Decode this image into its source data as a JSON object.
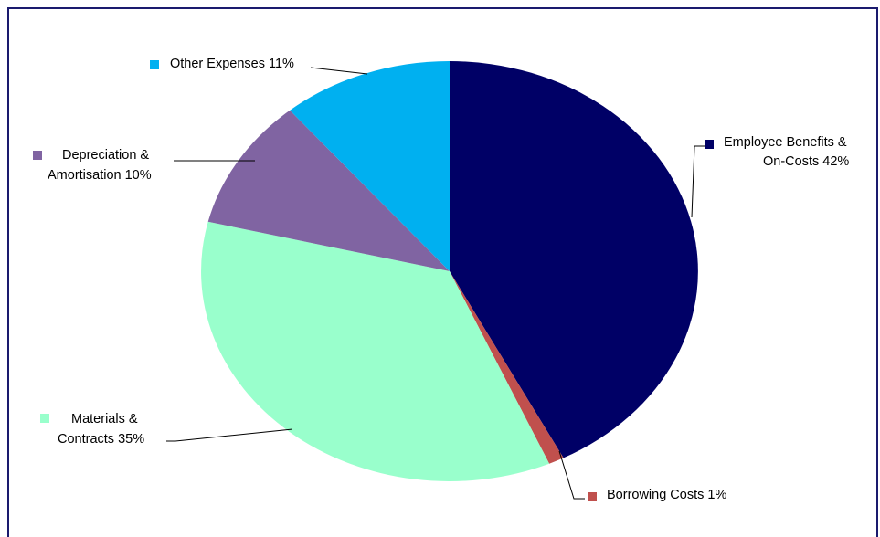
{
  "chart_data": {
    "type": "pie",
    "title": "",
    "slices": [
      {
        "label_lines": [
          "Employee Benefits &",
          "On-Costs 42%"
        ],
        "category": "Employee Benefits & On-Costs",
        "value": 42,
        "color": "#000066"
      },
      {
        "label_lines": [
          "Borrowing Costs 1%"
        ],
        "category": "Borrowing Costs",
        "value": 1,
        "color": "#c0504d"
      },
      {
        "label_lines": [
          "Materials &",
          "Contracts 35%"
        ],
        "category": "Materials & Contracts",
        "value": 35,
        "color": "#99ffcc"
      },
      {
        "label_lines": [
          "Depreciation &",
          "Amortisation 10%"
        ],
        "category": "Depreciation & Amortisation",
        "value": 10,
        "color": "#8064a2"
      },
      {
        "label_lines": [
          "Other Expenses 11%"
        ],
        "category": "Other Expenses",
        "value": 11,
        "color": "#00b0f0"
      }
    ],
    "start_angle": "12 o'clock",
    "direction": "clockwise",
    "legend": "leader-line labels with colored markers"
  }
}
